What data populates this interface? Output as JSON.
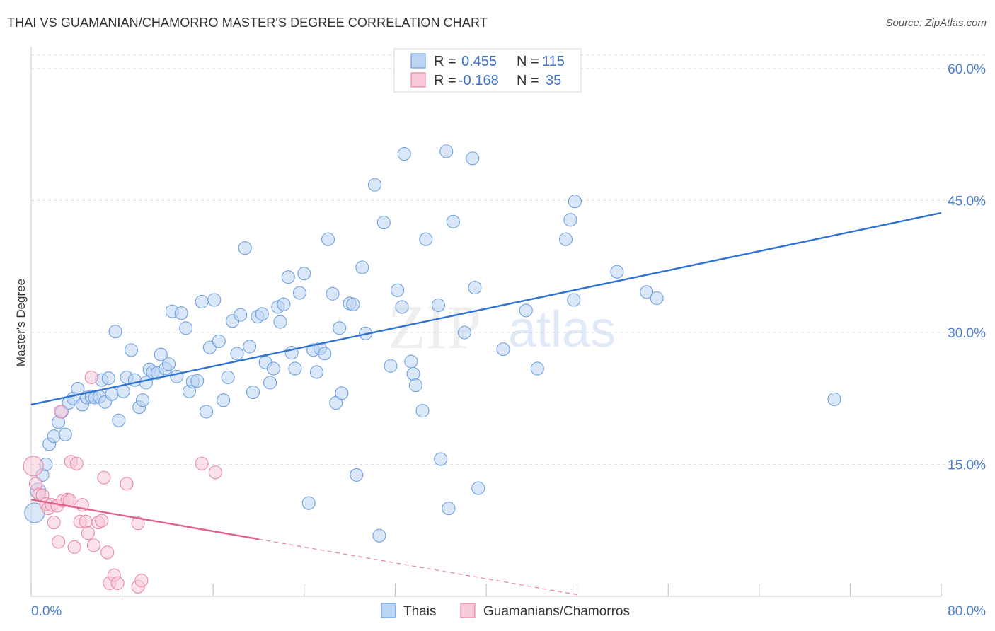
{
  "title": "THAI VS GUAMANIAN/CHAMORRO MASTER'S DEGREE CORRELATION CHART",
  "source": "Source: ZipAtlas.com",
  "watermark": {
    "zip": "ZIP",
    "atlas": "atlas"
  },
  "colors": {
    "blue": "#6fa0e0",
    "blue_fill": "#bcd3f2",
    "blue_line": "#2f72d0",
    "pink": "#e889a8",
    "pink_fill": "#f8c9d8",
    "pink_line": "#e0608e",
    "grid": "#dddddd",
    "axis_text": "#4a7fcf"
  },
  "legend_top": {
    "rows": [
      {
        "r_label": "R =",
        "r_value": "0.455",
        "n_label": "N =",
        "n_value": "115",
        "color": "blue"
      },
      {
        "r_label": "R =",
        "r_value": "-0.168",
        "n_label": "N =",
        "n_value": "35",
        "color": "pink"
      }
    ]
  },
  "legend_bottom": [
    {
      "label": "Thais",
      "color": "blue"
    },
    {
      "label": "Guamanians/Chamorros",
      "color": "pink"
    }
  ],
  "chart_data": {
    "type": "scatter",
    "title": "THAI VS GUAMANIAN/CHAMORRO MASTER'S DEGREE CORRELATION CHART",
    "xlabel": "",
    "ylabel": "Master's Degree",
    "xlim": [
      0,
      80
    ],
    "ylim": [
      0,
      60
    ],
    "x_tick_labels": [
      "0.0%",
      "80.0%"
    ],
    "y_ticks": [
      15,
      30,
      45,
      60
    ],
    "y_tick_labels": [
      "15.0%",
      "30.0%",
      "45.0%",
      "60.0%"
    ],
    "grid": true,
    "legend_placement": "top-center",
    "series": [
      {
        "name": "Thais",
        "color": "blue",
        "trend": {
          "x": [
            0,
            80
          ],
          "y": [
            21.8,
            43.6
          ]
        },
        "points": [
          {
            "x": 0.3,
            "y": 9.5,
            "s": 3
          },
          {
            "x": 0.6,
            "y": 12.0,
            "s": 2
          },
          {
            "x": 1.0,
            "y": 13.8,
            "s": 1
          },
          {
            "x": 1.3,
            "y": 15.0,
            "s": 1
          },
          {
            "x": 1.6,
            "y": 17.3,
            "s": 1
          },
          {
            "x": 2.0,
            "y": 18.2,
            "s": 1
          },
          {
            "x": 2.4,
            "y": 19.8,
            "s": 1
          },
          {
            "x": 2.7,
            "y": 21.0,
            "s": 1
          },
          {
            "x": 3.0,
            "y": 18.4,
            "s": 1
          },
          {
            "x": 3.3,
            "y": 22.0,
            "s": 1
          },
          {
            "x": 3.7,
            "y": 22.5,
            "s": 1
          },
          {
            "x": 4.1,
            "y": 23.6,
            "s": 1
          },
          {
            "x": 4.5,
            "y": 21.8,
            "s": 1
          },
          {
            "x": 4.9,
            "y": 22.6,
            "s": 1
          },
          {
            "x": 5.3,
            "y": 22.7,
            "s": 1
          },
          {
            "x": 5.6,
            "y": 22.6,
            "s": 1
          },
          {
            "x": 6.0,
            "y": 22.7,
            "s": 1
          },
          {
            "x": 6.2,
            "y": 24.6,
            "s": 1
          },
          {
            "x": 6.5,
            "y": 22.1,
            "s": 1
          },
          {
            "x": 6.8,
            "y": 24.8,
            "s": 1
          },
          {
            "x": 7.1,
            "y": 23.0,
            "s": 1
          },
          {
            "x": 7.4,
            "y": 30.1,
            "s": 1
          },
          {
            "x": 7.7,
            "y": 20.0,
            "s": 1
          },
          {
            "x": 8.1,
            "y": 23.3,
            "s": 1
          },
          {
            "x": 8.4,
            "y": 24.9,
            "s": 1
          },
          {
            "x": 8.8,
            "y": 28.0,
            "s": 1
          },
          {
            "x": 9.1,
            "y": 24.6,
            "s": 1
          },
          {
            "x": 9.5,
            "y": 21.5,
            "s": 1
          },
          {
            "x": 9.8,
            "y": 22.3,
            "s": 1
          },
          {
            "x": 10.1,
            "y": 24.3,
            "s": 1
          },
          {
            "x": 10.4,
            "y": 25.8,
            "s": 1
          },
          {
            "x": 10.7,
            "y": 25.5,
            "s": 1
          },
          {
            "x": 11.1,
            "y": 25.4,
            "s": 1
          },
          {
            "x": 11.4,
            "y": 27.5,
            "s": 1
          },
          {
            "x": 11.8,
            "y": 25.9,
            "s": 1
          },
          {
            "x": 12.1,
            "y": 26.4,
            "s": 1
          },
          {
            "x": 12.4,
            "y": 32.4,
            "s": 1
          },
          {
            "x": 12.8,
            "y": 25.0,
            "s": 1
          },
          {
            "x": 13.2,
            "y": 32.2,
            "s": 1
          },
          {
            "x": 13.6,
            "y": 30.5,
            "s": 1
          },
          {
            "x": 13.9,
            "y": 23.3,
            "s": 1
          },
          {
            "x": 14.2,
            "y": 24.4,
            "s": 1
          },
          {
            "x": 14.6,
            "y": 24.5,
            "s": 1
          },
          {
            "x": 15.0,
            "y": 33.5,
            "s": 1
          },
          {
            "x": 15.4,
            "y": 21.0,
            "s": 1
          },
          {
            "x": 15.7,
            "y": 28.3,
            "s": 1
          },
          {
            "x": 16.1,
            "y": 33.7,
            "s": 1
          },
          {
            "x": 16.5,
            "y": 29.0,
            "s": 1
          },
          {
            "x": 16.9,
            "y": 22.3,
            "s": 1
          },
          {
            "x": 17.3,
            "y": 24.9,
            "s": 1
          },
          {
            "x": 17.7,
            "y": 31.3,
            "s": 1
          },
          {
            "x": 18.1,
            "y": 27.6,
            "s": 1
          },
          {
            "x": 18.4,
            "y": 32.0,
            "s": 1
          },
          {
            "x": 18.8,
            "y": 39.6,
            "s": 1
          },
          {
            "x": 19.2,
            "y": 28.4,
            "s": 1
          },
          {
            "x": 19.5,
            "y": 23.2,
            "s": 1
          },
          {
            "x": 19.9,
            "y": 31.8,
            "s": 1
          },
          {
            "x": 20.3,
            "y": 32.1,
            "s": 1
          },
          {
            "x": 20.6,
            "y": 26.6,
            "s": 1
          },
          {
            "x": 21.0,
            "y": 24.3,
            "s": 1
          },
          {
            "x": 21.3,
            "y": 25.9,
            "s": 1
          },
          {
            "x": 21.7,
            "y": 32.9,
            "s": 1
          },
          {
            "x": 21.9,
            "y": 31.2,
            "s": 1
          },
          {
            "x": 22.2,
            "y": 33.2,
            "s": 1
          },
          {
            "x": 22.6,
            "y": 36.3,
            "s": 1
          },
          {
            "x": 22.9,
            "y": 27.7,
            "s": 1
          },
          {
            "x": 23.2,
            "y": 25.9,
            "s": 1
          },
          {
            "x": 23.6,
            "y": 34.5,
            "s": 1
          },
          {
            "x": 24.0,
            "y": 36.7,
            "s": 1
          },
          {
            "x": 24.4,
            "y": 10.6,
            "s": 1
          },
          {
            "x": 24.8,
            "y": 28.0,
            "s": 1
          },
          {
            "x": 25.1,
            "y": 25.5,
            "s": 1
          },
          {
            "x": 25.4,
            "y": 28.2,
            "s": 1
          },
          {
            "x": 25.8,
            "y": 27.6,
            "s": 1
          },
          {
            "x": 26.1,
            "y": 40.6,
            "s": 1
          },
          {
            "x": 26.5,
            "y": 34.4,
            "s": 1
          },
          {
            "x": 26.8,
            "y": 22.0,
            "s": 1
          },
          {
            "x": 27.1,
            "y": 30.5,
            "s": 1
          },
          {
            "x": 27.3,
            "y": 23.1,
            "s": 1
          },
          {
            "x": 28.0,
            "y": 33.3,
            "s": 1
          },
          {
            "x": 28.3,
            "y": 33.2,
            "s": 1
          },
          {
            "x": 28.6,
            "y": 13.8,
            "s": 1
          },
          {
            "x": 29.1,
            "y": 37.4,
            "s": 1
          },
          {
            "x": 29.4,
            "y": 29.9,
            "s": 1
          },
          {
            "x": 30.2,
            "y": 46.8,
            "s": 1
          },
          {
            "x": 30.6,
            "y": 6.9,
            "s": 1
          },
          {
            "x": 31.0,
            "y": 42.5,
            "s": 1
          },
          {
            "x": 31.6,
            "y": 26.2,
            "s": 1
          },
          {
            "x": 32.2,
            "y": 34.8,
            "s": 1
          },
          {
            "x": 32.6,
            "y": 32.9,
            "s": 1
          },
          {
            "x": 32.8,
            "y": 50.3,
            "s": 1
          },
          {
            "x": 33.4,
            "y": 26.7,
            "s": 1
          },
          {
            "x": 33.6,
            "y": 25.3,
            "s": 1
          },
          {
            "x": 33.8,
            "y": 24.0,
            "s": 1
          },
          {
            "x": 34.4,
            "y": 21.1,
            "s": 1
          },
          {
            "x": 34.7,
            "y": 40.6,
            "s": 1
          },
          {
            "x": 35.8,
            "y": 33.1,
            "s": 1
          },
          {
            "x": 36.0,
            "y": 15.6,
            "s": 1
          },
          {
            "x": 36.5,
            "y": 50.6,
            "s": 1
          },
          {
            "x": 36.7,
            "y": 10.0,
            "s": 1
          },
          {
            "x": 37.1,
            "y": 42.6,
            "s": 1
          },
          {
            "x": 38.1,
            "y": 30.0,
            "s": 1
          },
          {
            "x": 39.0,
            "y": 35.1,
            "s": 1
          },
          {
            "x": 39.3,
            "y": 12.3,
            "s": 1
          },
          {
            "x": 38.8,
            "y": 49.8,
            "s": 1
          },
          {
            "x": 41.5,
            "y": 28.1,
            "s": 1
          },
          {
            "x": 43.5,
            "y": 32.5,
            "s": 1
          },
          {
            "x": 44.5,
            "y": 25.9,
            "s": 1
          },
          {
            "x": 47.0,
            "y": 40.6,
            "s": 1
          },
          {
            "x": 47.4,
            "y": 42.8,
            "s": 1
          },
          {
            "x": 47.7,
            "y": 33.7,
            "s": 1
          },
          {
            "x": 47.8,
            "y": 44.9,
            "s": 1
          },
          {
            "x": 51.5,
            "y": 36.9,
            "s": 1
          },
          {
            "x": 54.1,
            "y": 34.6,
            "s": 1
          },
          {
            "x": 55.0,
            "y": 33.9,
            "s": 1
          },
          {
            "x": 70.6,
            "y": 22.4,
            "s": 1
          }
        ]
      },
      {
        "name": "Guamanians/Chamorros",
        "color": "pink",
        "trend": {
          "x": [
            0,
            20
          ],
          "y": [
            11.0,
            6.5
          ]
        },
        "trend_extension": {
          "x": [
            20,
            48
          ],
          "y": [
            6.5,
            0.2
          ]
        },
        "points": [
          {
            "x": 0.2,
            "y": 14.8,
            "s": 3
          },
          {
            "x": 0.4,
            "y": 12.8,
            "s": 1
          },
          {
            "x": 0.7,
            "y": 11.6,
            "s": 1
          },
          {
            "x": 1.0,
            "y": 11.5,
            "s": 1
          },
          {
            "x": 1.3,
            "y": 10.5,
            "s": 1
          },
          {
            "x": 1.5,
            "y": 10.0,
            "s": 1
          },
          {
            "x": 1.8,
            "y": 10.4,
            "s": 1
          },
          {
            "x": 2.0,
            "y": 8.4,
            "s": 1
          },
          {
            "x": 2.3,
            "y": 10.3,
            "s": 1
          },
          {
            "x": 2.4,
            "y": 6.2,
            "s": 1
          },
          {
            "x": 2.6,
            "y": 21.0,
            "s": 1
          },
          {
            "x": 2.8,
            "y": 10.9,
            "s": 1
          },
          {
            "x": 3.2,
            "y": 11.0,
            "s": 1
          },
          {
            "x": 3.4,
            "y": 10.9,
            "s": 1
          },
          {
            "x": 3.5,
            "y": 15.3,
            "s": 1
          },
          {
            "x": 3.8,
            "y": 5.6,
            "s": 1
          },
          {
            "x": 4.0,
            "y": 15.1,
            "s": 1
          },
          {
            "x": 4.3,
            "y": 8.5,
            "s": 1
          },
          {
            "x": 4.5,
            "y": 10.4,
            "s": 1
          },
          {
            "x": 4.8,
            "y": 8.5,
            "s": 1
          },
          {
            "x": 5.0,
            "y": 7.2,
            "s": 1
          },
          {
            "x": 5.3,
            "y": 24.9,
            "s": 1
          },
          {
            "x": 5.5,
            "y": 5.8,
            "s": 1
          },
          {
            "x": 5.9,
            "y": 8.4,
            "s": 1
          },
          {
            "x": 6.2,
            "y": 8.6,
            "s": 1
          },
          {
            "x": 6.4,
            "y": 13.5,
            "s": 1
          },
          {
            "x": 6.7,
            "y": 5.0,
            "s": 1
          },
          {
            "x": 6.9,
            "y": 1.5,
            "s": 1
          },
          {
            "x": 7.3,
            "y": 2.4,
            "s": 1
          },
          {
            "x": 7.6,
            "y": 1.5,
            "s": 1
          },
          {
            "x": 8.4,
            "y": 12.8,
            "s": 1
          },
          {
            "x": 9.4,
            "y": 8.3,
            "s": 1
          },
          {
            "x": 9.4,
            "y": 1.1,
            "s": 1
          },
          {
            "x": 9.7,
            "y": 1.8,
            "s": 1
          },
          {
            "x": 15.0,
            "y": 15.1,
            "s": 1
          },
          {
            "x": 16.2,
            "y": 14.1,
            "s": 1
          }
        ]
      }
    ]
  }
}
